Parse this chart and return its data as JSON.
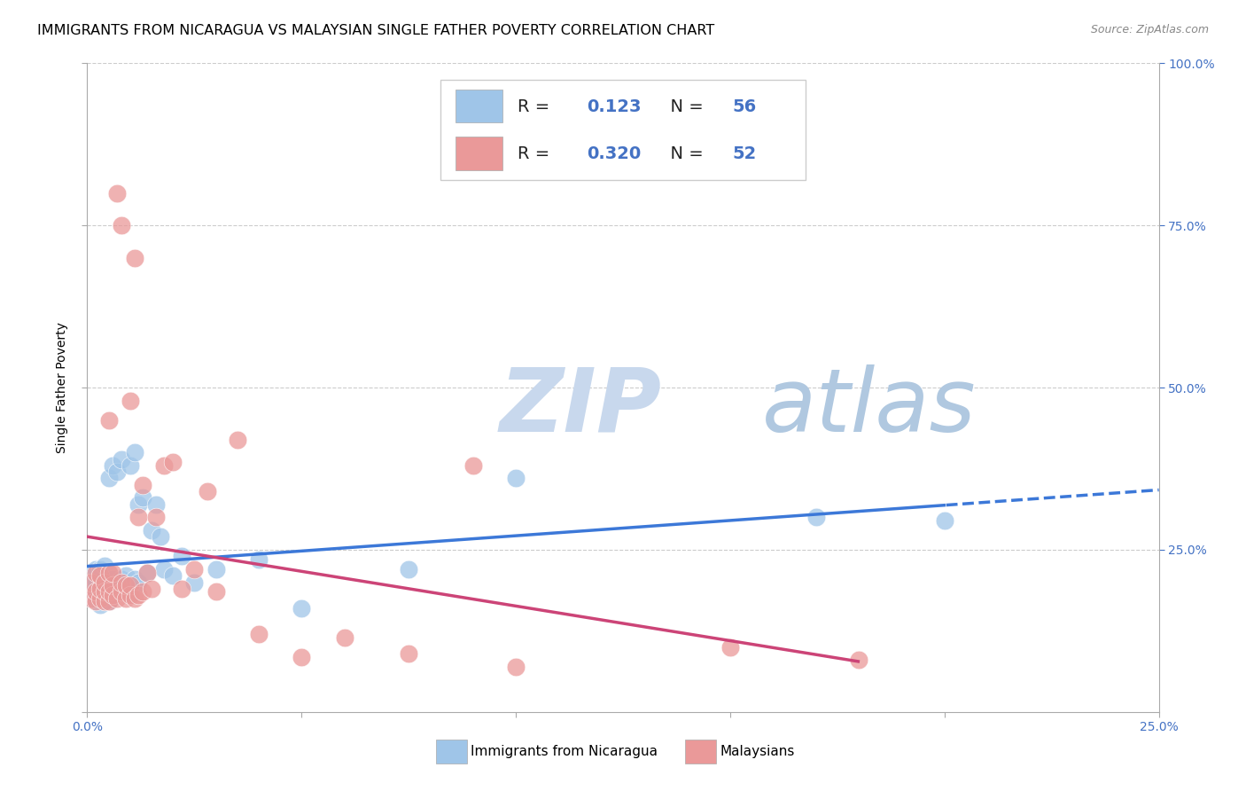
{
  "title": "IMMIGRANTS FROM NICARAGUA VS MALAYSIAN SINGLE FATHER POVERTY CORRELATION CHART",
  "source": "Source: ZipAtlas.com",
  "ylabel": "Single Father Poverty",
  "blue_R": 0.123,
  "blue_N": 56,
  "pink_R": 0.32,
  "pink_N": 52,
  "blue_color": "#9fc5e8",
  "pink_color": "#ea9999",
  "blue_line_color": "#3c78d8",
  "pink_line_color": "#cc4477",
  "blue_scatter_x": [
    0.001,
    0.001,
    0.001,
    0.002,
    0.002,
    0.002,
    0.002,
    0.003,
    0.003,
    0.003,
    0.003,
    0.003,
    0.004,
    0.004,
    0.004,
    0.004,
    0.005,
    0.005,
    0.005,
    0.005,
    0.005,
    0.006,
    0.006,
    0.006,
    0.006,
    0.007,
    0.007,
    0.007,
    0.008,
    0.008,
    0.008,
    0.009,
    0.009,
    0.01,
    0.01,
    0.01,
    0.011,
    0.011,
    0.012,
    0.012,
    0.013,
    0.014,
    0.015,
    0.016,
    0.017,
    0.018,
    0.02,
    0.022,
    0.025,
    0.03,
    0.04,
    0.05,
    0.075,
    0.1,
    0.17,
    0.2
  ],
  "blue_scatter_y": [
    0.175,
    0.19,
    0.21,
    0.175,
    0.18,
    0.2,
    0.22,
    0.165,
    0.18,
    0.195,
    0.21,
    0.22,
    0.17,
    0.185,
    0.2,
    0.225,
    0.17,
    0.185,
    0.195,
    0.215,
    0.36,
    0.18,
    0.19,
    0.205,
    0.38,
    0.185,
    0.2,
    0.37,
    0.185,
    0.205,
    0.39,
    0.19,
    0.21,
    0.18,
    0.195,
    0.38,
    0.205,
    0.4,
    0.2,
    0.32,
    0.33,
    0.215,
    0.28,
    0.32,
    0.27,
    0.22,
    0.21,
    0.24,
    0.2,
    0.22,
    0.235,
    0.16,
    0.22,
    0.36,
    0.3,
    0.295
  ],
  "pink_scatter_x": [
    0.001,
    0.001,
    0.002,
    0.002,
    0.002,
    0.003,
    0.003,
    0.003,
    0.004,
    0.004,
    0.004,
    0.005,
    0.005,
    0.005,
    0.005,
    0.006,
    0.006,
    0.006,
    0.007,
    0.007,
    0.008,
    0.008,
    0.008,
    0.009,
    0.009,
    0.01,
    0.01,
    0.01,
    0.011,
    0.011,
    0.012,
    0.012,
    0.013,
    0.013,
    0.014,
    0.015,
    0.016,
    0.018,
    0.02,
    0.022,
    0.025,
    0.028,
    0.03,
    0.035,
    0.04,
    0.05,
    0.06,
    0.075,
    0.09,
    0.1,
    0.15,
    0.18
  ],
  "pink_scatter_y": [
    0.175,
    0.2,
    0.17,
    0.185,
    0.215,
    0.175,
    0.19,
    0.21,
    0.17,
    0.185,
    0.2,
    0.17,
    0.185,
    0.215,
    0.45,
    0.18,
    0.195,
    0.215,
    0.175,
    0.8,
    0.185,
    0.2,
    0.75,
    0.175,
    0.195,
    0.18,
    0.195,
    0.48,
    0.175,
    0.7,
    0.18,
    0.3,
    0.185,
    0.35,
    0.215,
    0.19,
    0.3,
    0.38,
    0.385,
    0.19,
    0.22,
    0.34,
    0.185,
    0.42,
    0.12,
    0.085,
    0.115,
    0.09,
    0.38,
    0.07,
    0.1,
    0.08
  ],
  "watermark_zip": "ZIP",
  "watermark_atlas": "atlas",
  "watermark_color": "#c8d8ed",
  "legend_label1": "Immigrants from Nicaragua",
  "legend_label2": "Malaysians",
  "background_color": "#ffffff",
  "grid_color": "#cccccc",
  "title_fontsize": 11.5,
  "tick_fontsize": 10,
  "right_tick_color": "#4472c4",
  "bottom_tick_color": "#4472c4"
}
